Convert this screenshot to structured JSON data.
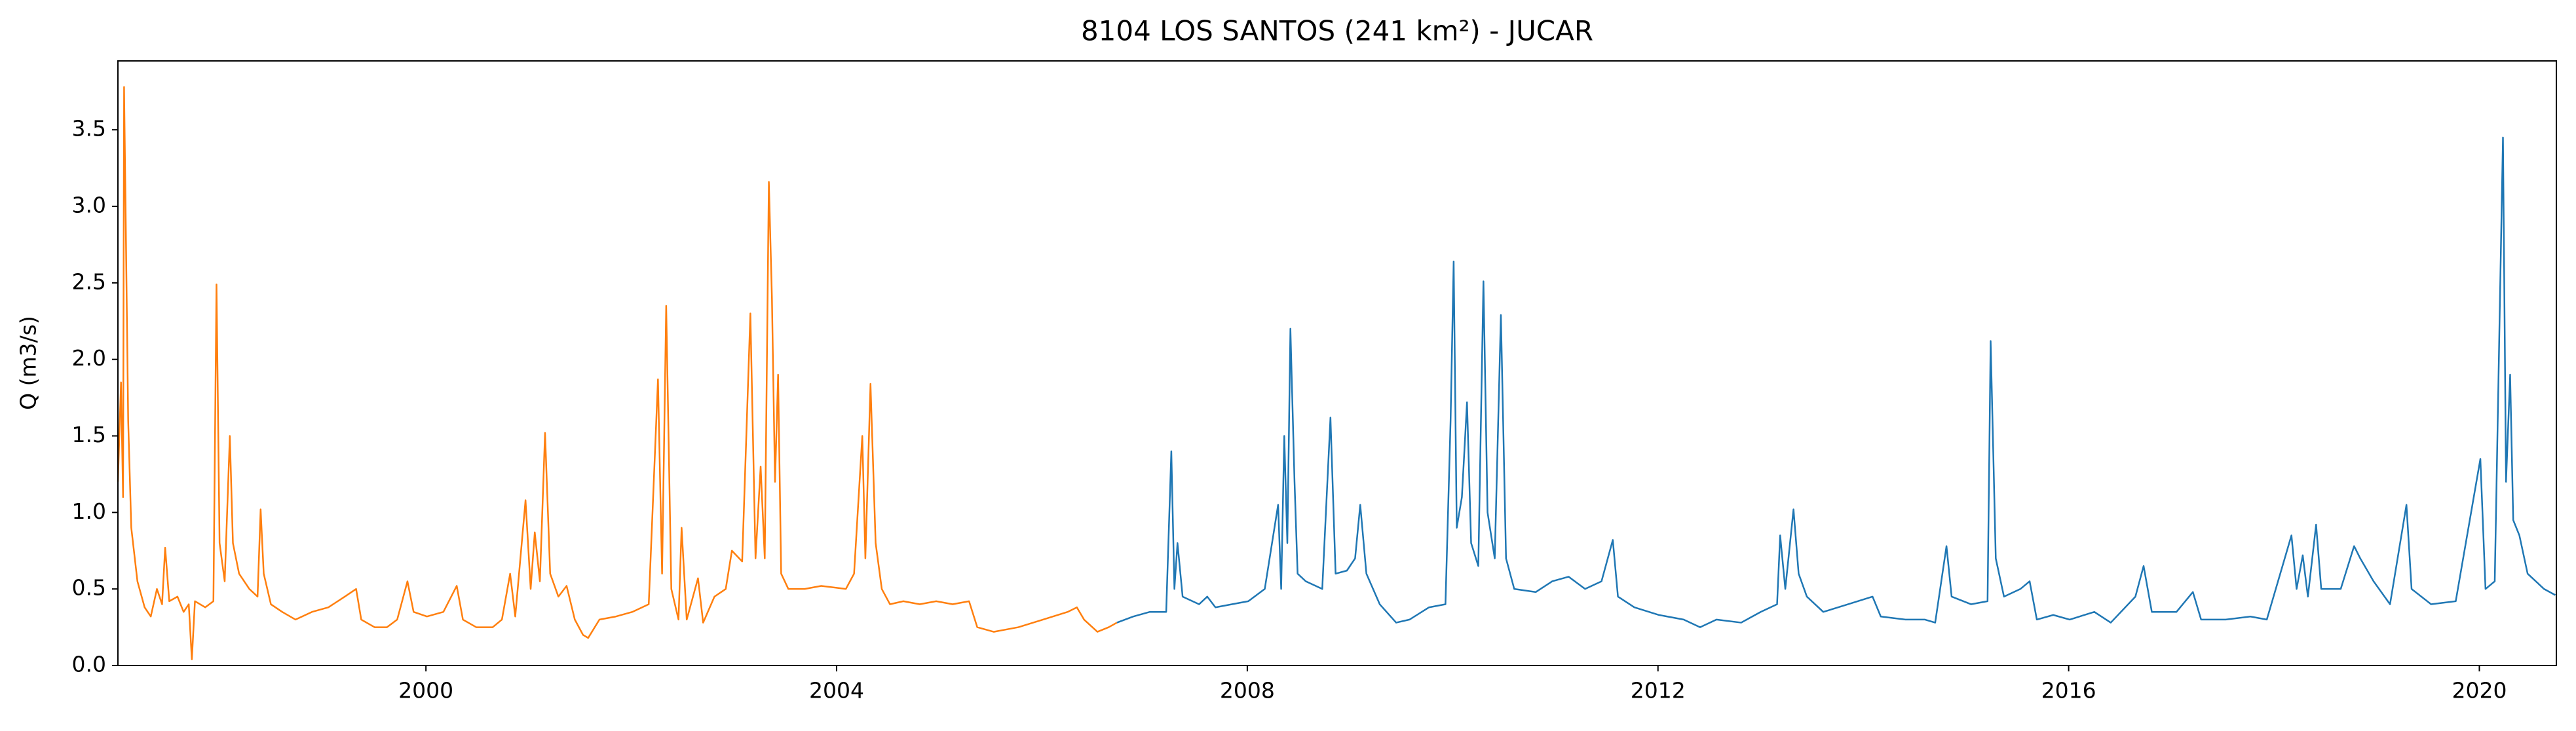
{
  "chart_data": {
    "type": "line",
    "title": "8104 LOS SANTOS (241 km²) - JUCAR",
    "ylabel": "Q (m3/s)",
    "xlim": [
      1997.0,
      2020.75
    ],
    "xticks": [
      2000,
      2004,
      2008,
      2012,
      2016,
      2020
    ],
    "ylim": [
      0,
      3.95
    ],
    "yticks": [
      {
        "value": 0,
        "label": "0.0"
      },
      0.5,
      {
        "value": 1,
        "label": "1.0"
      },
      1.5,
      {
        "value": 2,
        "label": "2.0"
      },
      2.5,
      {
        "value": 3,
        "label": "3.0"
      },
      3.5
    ],
    "grid": false,
    "series": [
      {
        "color": "#ff7f0e",
        "x": [
          1997.0,
          1997.03,
          1997.05,
          1997.06,
          1997.1,
          1997.13,
          1997.19,
          1997.26,
          1997.32,
          1997.38,
          1997.43,
          1997.46,
          1997.5,
          1997.58,
          1997.64,
          1997.69,
          1997.72,
          1997.75,
          1997.85,
          1997.93,
          1997.96,
          1997.99,
          1998.04,
          1998.09,
          1998.12,
          1998.18,
          1998.28,
          1998.36,
          1998.39,
          1998.42,
          1998.49,
          1998.6,
          1998.73,
          1998.89,
          1999.05,
          1999.21,
          1999.32,
          1999.37,
          1999.5,
          1999.62,
          1999.72,
          1999.82,
          1999.88,
          2000.01,
          2000.17,
          2000.3,
          2000.36,
          2000.49,
          2000.65,
          2000.74,
          2000.82,
          2000.87,
          2000.97,
          2001.02,
          2001.06,
          2001.11,
          2001.16,
          2001.21,
          2001.29,
          2001.37,
          2001.45,
          2001.53,
          2001.58,
          2001.69,
          2001.85,
          2002.01,
          2002.17,
          2002.26,
          2002.3,
          2002.34,
          2002.39,
          2002.46,
          2002.49,
          2002.54,
          2002.65,
          2002.7,
          2002.81,
          2002.92,
          2002.98,
          2003.08,
          2003.16,
          2003.21,
          2003.26,
          2003.3,
          2003.34,
          2003.37,
          2003.4,
          2003.43,
          2003.46,
          2003.53,
          2003.69,
          2003.85,
          2004.09,
          2004.17,
          2004.25,
          2004.28,
          2004.33,
          2004.38,
          2004.44,
          2004.52,
          2004.65,
          2004.81,
          2004.97,
          2005.13,
          2005.29,
          2005.37,
          2005.53,
          2005.77,
          2006.01,
          2006.25,
          2006.34,
          2006.41,
          2006.54,
          2006.65,
          2006.73
        ],
        "values": [
          1.2,
          1.85,
          1.1,
          3.78,
          1.6,
          0.9,
          0.55,
          0.38,
          0.32,
          0.5,
          0.4,
          0.77,
          0.42,
          0.45,
          0.35,
          0.4,
          0.04,
          0.42,
          0.38,
          0.42,
          2.49,
          0.8,
          0.55,
          1.5,
          0.8,
          0.6,
          0.5,
          0.45,
          1.02,
          0.6,
          0.4,
          0.35,
          0.3,
          0.35,
          0.38,
          0.45,
          0.5,
          0.3,
          0.25,
          0.25,
          0.3,
          0.55,
          0.35,
          0.32,
          0.35,
          0.52,
          0.3,
          0.25,
          0.25,
          0.3,
          0.6,
          0.32,
          1.08,
          0.5,
          0.87,
          0.55,
          1.52,
          0.6,
          0.45,
          0.52,
          0.3,
          0.2,
          0.18,
          0.3,
          0.32,
          0.35,
          0.4,
          1.87,
          0.6,
          2.35,
          0.5,
          0.3,
          0.9,
          0.3,
          0.57,
          0.28,
          0.45,
          0.5,
          0.75,
          0.68,
          2.3,
          0.7,
          1.3,
          0.7,
          3.16,
          2.4,
          1.2,
          1.9,
          0.6,
          0.5,
          0.5,
          0.52,
          0.5,
          0.6,
          1.5,
          0.7,
          1.84,
          0.8,
          0.5,
          0.4,
          0.42,
          0.4,
          0.42,
          0.4,
          0.42,
          0.25,
          0.22,
          0.25,
          0.3,
          0.35,
          0.38,
          0.3,
          0.22,
          0.25,
          0.28
        ]
      },
      {
        "color": "#1f77b4",
        "x": [
          2006.73,
          2006.89,
          2007.05,
          2007.21,
          2007.26,
          2007.29,
          2007.32,
          2007.37,
          2007.53,
          2007.61,
          2007.69,
          2007.85,
          2008.01,
          2008.17,
          2008.3,
          2008.33,
          2008.36,
          2008.39,
          2008.42,
          2008.46,
          2008.49,
          2008.57,
          2008.73,
          2008.81,
          2008.86,
          2008.97,
          2009.05,
          2009.1,
          2009.16,
          2009.29,
          2009.45,
          2009.58,
          2009.77,
          2009.93,
          2009.98,
          2010.01,
          2010.04,
          2010.09,
          2010.14,
          2010.18,
          2010.25,
          2010.3,
          2010.34,
          2010.41,
          2010.47,
          2010.52,
          2010.6,
          2010.81,
          2010.97,
          2011.13,
          2011.29,
          2011.45,
          2011.56,
          2011.61,
          2011.77,
          2012.01,
          2012.25,
          2012.41,
          2012.57,
          2012.81,
          2013.0,
          2013.16,
          2013.19,
          2013.24,
          2013.32,
          2013.37,
          2013.45,
          2013.61,
          2013.85,
          2014.09,
          2014.17,
          2014.41,
          2014.6,
          2014.7,
          2014.81,
          2014.86,
          2015.05,
          2015.21,
          2015.24,
          2015.29,
          2015.37,
          2015.53,
          2015.62,
          2015.69,
          2015.85,
          2016.01,
          2016.25,
          2016.41,
          2016.65,
          2016.73,
          2016.81,
          2017.05,
          2017.21,
          2017.29,
          2017.53,
          2017.77,
          2017.93,
          2018.17,
          2018.22,
          2018.28,
          2018.33,
          2018.41,
          2018.46,
          2018.65,
          2018.78,
          2018.84,
          2018.97,
          2019.13,
          2019.29,
          2019.34,
          2019.53,
          2019.77,
          2020.01,
          2020.06,
          2020.15,
          2020.23,
          2020.26,
          2020.3,
          2020.33,
          2020.39,
          2020.47,
          2020.63,
          2020.74
        ],
        "values": [
          0.28,
          0.32,
          0.35,
          0.35,
          1.4,
          0.5,
          0.8,
          0.45,
          0.4,
          0.45,
          0.38,
          0.4,
          0.42,
          0.5,
          1.05,
          0.5,
          1.5,
          0.8,
          2.2,
          1.2,
          0.6,
          0.55,
          0.5,
          1.62,
          0.6,
          0.62,
          0.7,
          1.05,
          0.6,
          0.4,
          0.28,
          0.3,
          0.38,
          0.4,
          1.6,
          2.64,
          0.9,
          1.1,
          1.72,
          0.8,
          0.65,
          2.51,
          1.0,
          0.7,
          2.29,
          0.7,
          0.5,
          0.48,
          0.55,
          0.58,
          0.5,
          0.55,
          0.82,
          0.45,
          0.38,
          0.33,
          0.3,
          0.25,
          0.3,
          0.28,
          0.35,
          0.4,
          0.85,
          0.5,
          1.02,
          0.6,
          0.45,
          0.35,
          0.4,
          0.45,
          0.32,
          0.3,
          0.3,
          0.28,
          0.78,
          0.45,
          0.4,
          0.42,
          2.12,
          0.7,
          0.45,
          0.5,
          0.55,
          0.3,
          0.33,
          0.3,
          0.35,
          0.28,
          0.45,
          0.65,
          0.35,
          0.35,
          0.48,
          0.3,
          0.3,
          0.32,
          0.3,
          0.85,
          0.5,
          0.72,
          0.45,
          0.92,
          0.5,
          0.5,
          0.78,
          0.7,
          0.55,
          0.4,
          1.05,
          0.5,
          0.4,
          0.42,
          1.35,
          0.5,
          0.55,
          3.45,
          1.2,
          1.9,
          0.95,
          0.85,
          0.6,
          0.5,
          0.46
        ]
      }
    ]
  }
}
